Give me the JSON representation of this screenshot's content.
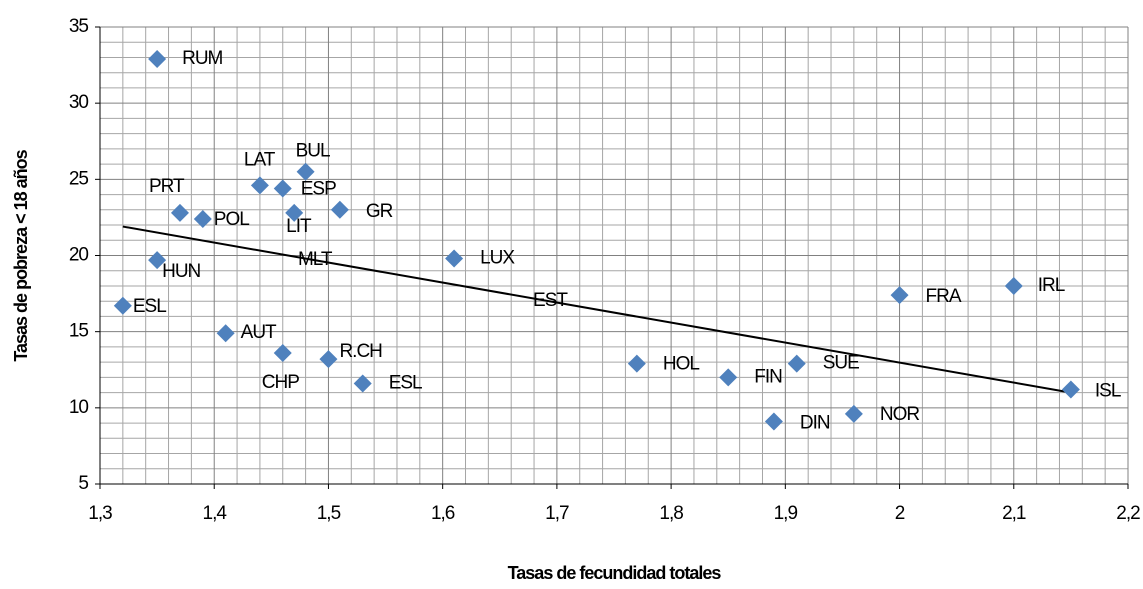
{
  "chart_data": {
    "type": "scatter",
    "x_label": "Tasas de fecundidad totales",
    "y_label": "Tasas de pobreza < 18 años",
    "xlim": [
      1.3,
      2.2
    ],
    "xticks": [
      {
        "value": 1.3,
        "label": "1,3"
      },
      {
        "value": 1.4,
        "label": "1,4"
      },
      {
        "value": 1.5,
        "label": "1,5"
      },
      {
        "value": 1.6,
        "label": "1,6"
      },
      {
        "value": 1.7,
        "label": "1,7"
      },
      {
        "value": 1.8,
        "label": "1,8"
      },
      {
        "value": 1.9,
        "label": "1,9"
      },
      2,
      {
        "value": 2.1,
        "label": "2,1"
      },
      {
        "value": 2.2,
        "label": "2,2"
      }
    ],
    "ylim": [
      5,
      35
    ],
    "yticks": [
      5,
      10,
      15,
      20,
      25,
      30,
      35
    ],
    "grid": true,
    "color": "#4f81bd",
    "series": [
      {
        "labels": [
          "RUM",
          "BUL",
          "LAT",
          "ESP",
          "PRT",
          "POL",
          "LIT",
          "GR",
          "HUN",
          "LUX",
          "ESL",
          "AUT",
          "CHP",
          "R.CH",
          "ESL",
          "HOL",
          "FIN",
          "SUE",
          "DIN",
          "NOR",
          "FRA",
          "IRL",
          "ISL"
        ],
        "x": [
          1.35,
          1.48,
          1.44,
          1.46,
          1.37,
          1.39,
          1.47,
          1.51,
          1.35,
          1.61,
          1.32,
          1.41,
          1.46,
          1.5,
          1.53,
          1.77,
          1.85,
          1.91,
          1.89,
          1.96,
          2.0,
          2.1,
          2.15
        ],
        "values": [
          32.9,
          25.5,
          24.6,
          24.4,
          22.8,
          22.4,
          22.8,
          23.0,
          19.7,
          19.8,
          16.7,
          14.9,
          13.6,
          13.2,
          11.6,
          12.9,
          12.0,
          12.9,
          9.1,
          9.6,
          17.4,
          18.0,
          11.2
        ]
      }
    ],
    "annotations": [
      {
        "text": "MLT",
        "x": 1.488,
        "y": 19.7
      },
      {
        "text": "EST",
        "x": 1.694,
        "y": 17.0
      }
    ],
    "trendline": {
      "x": [
        1.32,
        2.15
      ],
      "y": [
        21.9,
        11.0
      ],
      "color": "#000000"
    }
  }
}
